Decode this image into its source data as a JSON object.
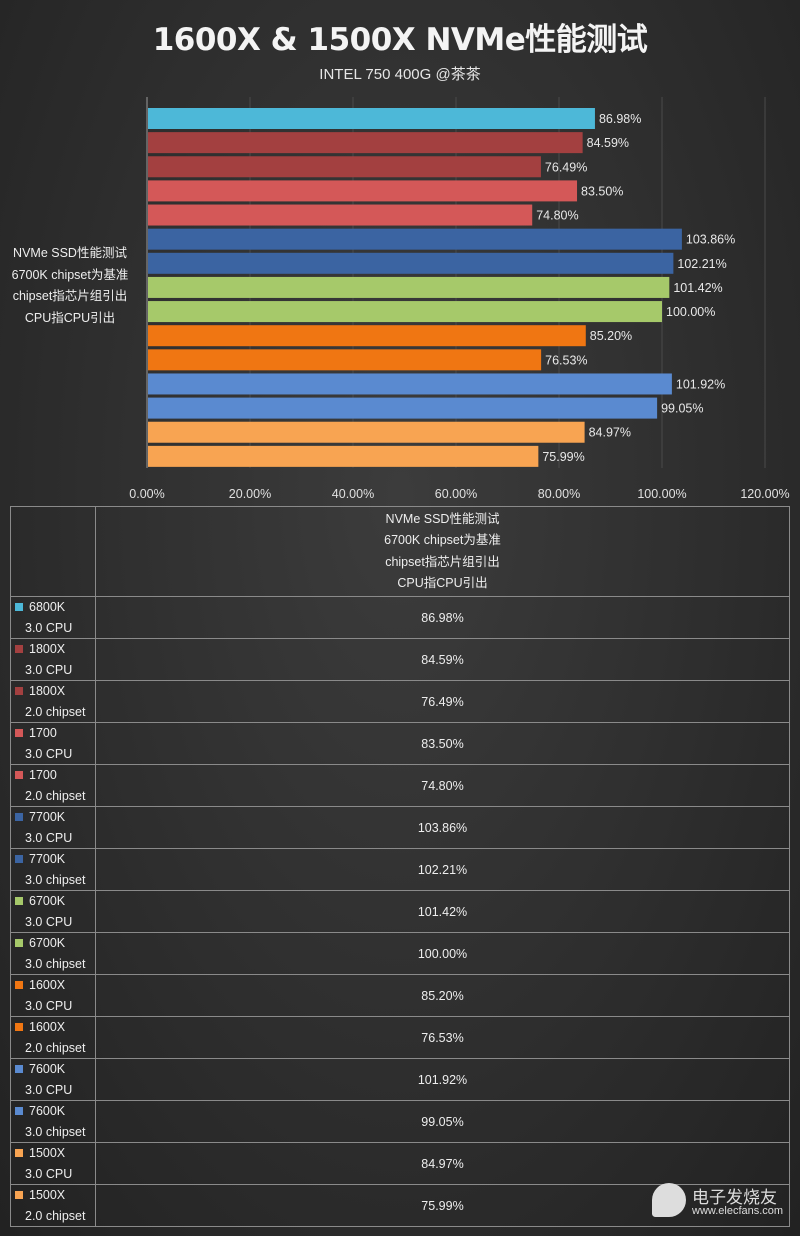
{
  "chart_data": {
    "type": "bar",
    "orientation": "horizontal",
    "title": "1600X & 1500X NVMe性能测试",
    "subtitle": "INTEL 750 400G @茶茶",
    "category_label": [
      "NVMe SSD性能测试",
      "6700K chipset为基准",
      "chipset指芯片组引出",
      "CPU指CPU引出"
    ],
    "xlim": [
      0,
      120
    ],
    "x_ticks": [
      "0.00%",
      "20.00%",
      "40.00%",
      "60.00%",
      "80.00%",
      "100.00%",
      "120.00%"
    ],
    "grid": true,
    "series": [
      {
        "name": "6800K 3.0 CPU",
        "line1": "6800K",
        "line2": "3.0 CPU",
        "value": 86.98,
        "label": "86.98%",
        "color": "#4db8d8"
      },
      {
        "name": "1800X 3.0 CPU",
        "line1": "1800X",
        "line2": "3.0 CPU",
        "value": 84.59,
        "label": "84.59%",
        "color": "#a34040"
      },
      {
        "name": "1800X 2.0 chipset",
        "line1": "1800X",
        "line2": "2.0 chipset",
        "value": 76.49,
        "label": "76.49%",
        "color": "#a34040"
      },
      {
        "name": "1700 3.0 CPU",
        "line1": "1700",
        "line2": "3.0 CPU",
        "value": 83.5,
        "label": "83.50%",
        "color": "#d45858"
      },
      {
        "name": "1700 2.0 chipset",
        "line1": "1700",
        "line2": "2.0 chipset",
        "value": 74.8,
        "label": "74.80%",
        "color": "#d45858"
      },
      {
        "name": "7700K 3.0 CPU",
        "line1": "7700K",
        "line2": "3.0 CPU",
        "value": 103.86,
        "label": "103.86%",
        "color": "#3b64a2"
      },
      {
        "name": "7700K 3.0 chipset",
        "line1": "7700K",
        "line2": "3.0 chipset",
        "value": 102.21,
        "label": "102.21%",
        "color": "#3b64a2"
      },
      {
        "name": "6700K 3.0 CPU",
        "line1": "6700K",
        "line2": "3.0 CPU",
        "value": 101.42,
        "label": "101.42%",
        "color": "#a6c96a"
      },
      {
        "name": "6700K 3.0 chipset",
        "line1": "6700K",
        "line2": "3.0 chipset",
        "value": 100.0,
        "label": "100.00%",
        "color": "#a6c96a"
      },
      {
        "name": "1600X 3.0 CPU",
        "line1": "1600X",
        "line2": "3.0 CPU",
        "value": 85.2,
        "label": "85.20%",
        "color": "#f07612"
      },
      {
        "name": "1600X 2.0 chipset",
        "line1": "1600X",
        "line2": "2.0 chipset",
        "value": 76.53,
        "label": "76.53%",
        "color": "#f07612"
      },
      {
        "name": "7600K 3.0 CPU",
        "line1": "7600K",
        "line2": "3.0 CPU",
        "value": 101.92,
        "label": "101.92%",
        "color": "#5a8ad0"
      },
      {
        "name": "7600K 3.0 chipset",
        "line1": "7600K",
        "line2": "3.0 chipset",
        "value": 99.05,
        "label": "99.05%",
        "color": "#5a8ad0"
      },
      {
        "name": "1500X 3.0 CPU",
        "line1": "1500X",
        "line2": "3.0 CPU",
        "value": 84.97,
        "label": "84.97%",
        "color": "#f8a452"
      },
      {
        "name": "1500X 2.0 chipset",
        "line1": "1500X",
        "line2": "2.0 chipset",
        "value": 75.99,
        "label": "75.99%",
        "color": "#f8a452"
      }
    ]
  },
  "watermark": {
    "name": "电子发烧友",
    "url": "www.elecfans.com"
  }
}
